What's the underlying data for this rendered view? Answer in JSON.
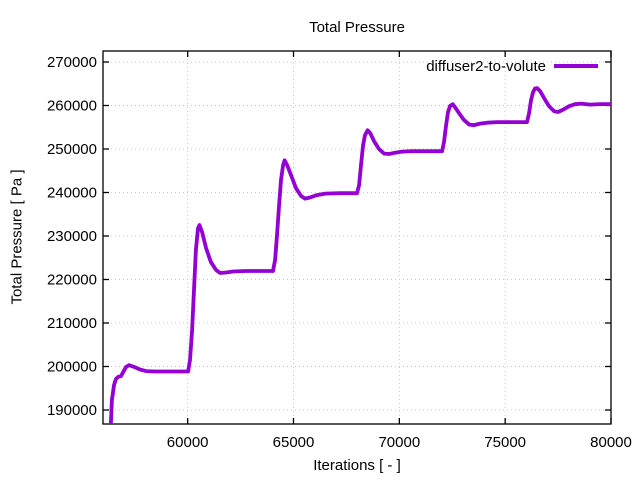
{
  "colors": {
    "line": "#9400D3",
    "grid": "#c8c8c8",
    "axis": "#000000",
    "background": "#ffffff",
    "text": "#000000"
  },
  "legend": {
    "label": "diffuser2-to-volute",
    "position": "top-right"
  },
  "chart_data": {
    "type": "line",
    "title": "Total Pressure",
    "xlabel": "Iterations [ - ]",
    "ylabel": "Total Pressure [ Pa ]",
    "xlim": [
      56000,
      80000
    ],
    "ylim": [
      186800,
      272500
    ],
    "x_ticks": [
      60000,
      65000,
      70000,
      75000,
      80000
    ],
    "x_tick_labels": [
      "60000",
      "65000",
      "70000",
      "75000",
      "80000"
    ],
    "y_ticks": [
      190000,
      200000,
      210000,
      220000,
      230000,
      240000,
      250000,
      260000,
      270000
    ],
    "y_tick_labels": [
      "190000",
      "200000",
      "210000",
      "220000",
      "230000",
      "240000",
      "250000",
      "260000",
      "270000"
    ],
    "grid": true,
    "legend_position": "top-right",
    "series": [
      {
        "name": "diffuser2-to-volute",
        "color": "#9400D3",
        "points": [
          [
            56310,
            183000
          ],
          [
            56370,
            186500
          ],
          [
            56420,
            192300
          ],
          [
            56520,
            195700
          ],
          [
            56610,
            197100
          ],
          [
            56710,
            197600
          ],
          [
            56850,
            197800
          ],
          [
            56950,
            198700
          ],
          [
            57090,
            199900
          ],
          [
            57230,
            200300
          ],
          [
            57470,
            199900
          ],
          [
            57750,
            199300
          ],
          [
            58030,
            198950
          ],
          [
            58460,
            198850
          ],
          [
            59200,
            198850
          ],
          [
            60020,
            198850
          ],
          [
            60110,
            201500
          ],
          [
            60210,
            208400
          ],
          [
            60300,
            217600
          ],
          [
            60390,
            226800
          ],
          [
            60490,
            231800
          ],
          [
            60560,
            232500
          ],
          [
            60680,
            230900
          ],
          [
            60870,
            227200
          ],
          [
            61100,
            224000
          ],
          [
            61340,
            222200
          ],
          [
            61530,
            221500
          ],
          [
            61810,
            221600
          ],
          [
            62140,
            221850
          ],
          [
            62710,
            221950
          ],
          [
            64030,
            221950
          ],
          [
            64130,
            224500
          ],
          [
            64220,
            230200
          ],
          [
            64320,
            237100
          ],
          [
            64410,
            242900
          ],
          [
            64510,
            246300
          ],
          [
            64580,
            247400
          ],
          [
            64700,
            246300
          ],
          [
            64880,
            244000
          ],
          [
            65120,
            241000
          ],
          [
            65360,
            239200
          ],
          [
            65550,
            238600
          ],
          [
            65780,
            238850
          ],
          [
            66110,
            239400
          ],
          [
            66490,
            239750
          ],
          [
            67200,
            239850
          ],
          [
            68000,
            239850
          ],
          [
            68100,
            241700
          ],
          [
            68190,
            246300
          ],
          [
            68290,
            250900
          ],
          [
            68380,
            253200
          ],
          [
            68500,
            254300
          ],
          [
            68620,
            253700
          ],
          [
            68810,
            251800
          ],
          [
            69040,
            250000
          ],
          [
            69280,
            248950
          ],
          [
            69510,
            248850
          ],
          [
            69800,
            249150
          ],
          [
            70130,
            249400
          ],
          [
            70600,
            249500
          ],
          [
            71450,
            249500
          ],
          [
            72020,
            249500
          ],
          [
            72110,
            251600
          ],
          [
            72210,
            255500
          ],
          [
            72300,
            258500
          ],
          [
            72400,
            259900
          ],
          [
            72520,
            260300
          ],
          [
            72630,
            259600
          ],
          [
            72820,
            258250
          ],
          [
            73060,
            256650
          ],
          [
            73300,
            255600
          ],
          [
            73530,
            255500
          ],
          [
            73810,
            255850
          ],
          [
            74150,
            256050
          ],
          [
            74620,
            256180
          ],
          [
            76030,
            256180
          ],
          [
            76130,
            258250
          ],
          [
            76220,
            261200
          ],
          [
            76320,
            263100
          ],
          [
            76410,
            263900
          ],
          [
            76510,
            264000
          ],
          [
            76650,
            263300
          ],
          [
            76840,
            261700
          ],
          [
            77070,
            259850
          ],
          [
            77310,
            258700
          ],
          [
            77500,
            258500
          ],
          [
            77740,
            259050
          ],
          [
            78020,
            259850
          ],
          [
            78300,
            260300
          ],
          [
            78590,
            260430
          ],
          [
            79010,
            260200
          ],
          [
            79480,
            260320
          ],
          [
            80000,
            260320
          ]
        ]
      }
    ]
  }
}
